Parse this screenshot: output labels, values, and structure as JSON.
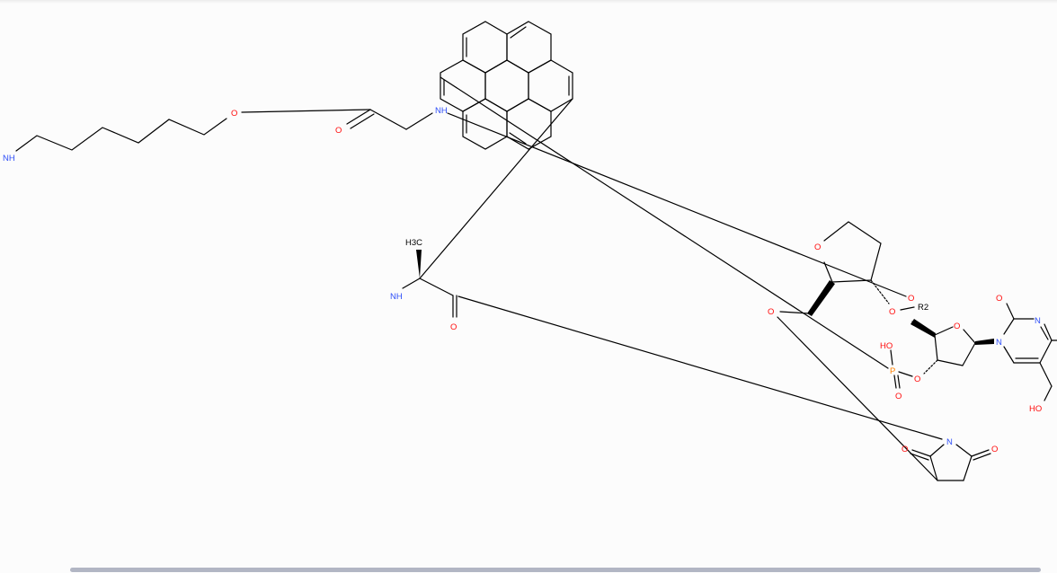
{
  "viewer": {
    "type": "chemical-structure",
    "scrollbar": "horizontal"
  },
  "colors": {
    "bond": "#000000",
    "carbon": "#000000",
    "oxygen": "#ff0d0d",
    "nitrogen": "#3050f8",
    "phosphorus": "#ff8000",
    "background": "#fcfcfc"
  },
  "labels": {
    "nh_left": "NH",
    "o_chain": "O",
    "o_amide": "O",
    "nh_top": "NH",
    "o_thf": "O",
    "o_r2": "O",
    "r2": "R2",
    "o_ring2": "O",
    "o_ester1": "O",
    "o_ester2": "O",
    "o_pyr": "O",
    "n_pyr1": "N",
    "n_pyr2": "N",
    "ho_phos": "HO",
    "p": "P",
    "o_phos": "O",
    "o_phos_bridge": "O",
    "ho_cm": "HO",
    "o_left_bond": "O",
    "h3c": "H3C",
    "nh_ala": "NH",
    "o_ala": "O",
    "n_succ": "N",
    "o_succ1": "O",
    "o_succ2": "O"
  }
}
